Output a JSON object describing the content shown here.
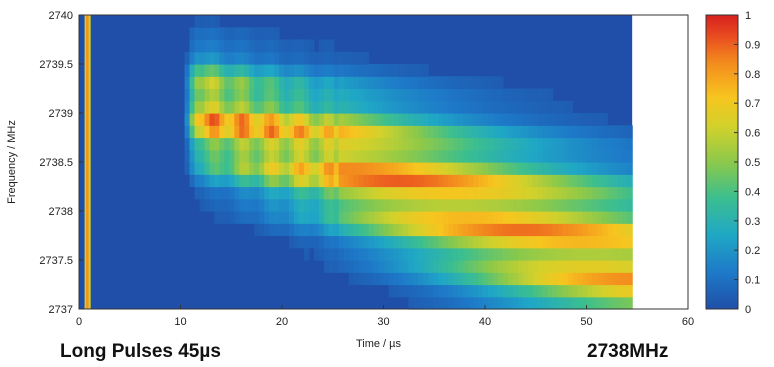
{
  "captions": {
    "left": "Long Pulses 45µs",
    "right": "2738MHz"
  },
  "chart_data": {
    "type": "heatmap",
    "title": "",
    "xlabel": "Time / µs",
    "ylabel": "Frequency / MHz",
    "xlim": [
      0,
      60
    ],
    "ylim": [
      2737,
      2740
    ],
    "x_ticks": [
      0,
      10,
      20,
      30,
      40,
      50,
      60
    ],
    "y_ticks": [
      2737,
      2737.5,
      2738,
      2738.5,
      2739,
      2739.5,
      2740
    ],
    "colorbar": {
      "ticks": [
        0,
        0.1,
        0.2,
        0.3,
        0.4,
        0.5,
        0.6,
        0.7,
        0.8,
        0.9,
        1
      ],
      "range": [
        0,
        1
      ],
      "colormap": "jet"
    },
    "time_range_with_signal": [
      10.4,
      54.5
    ],
    "data_time_extent": [
      0,
      54.5
    ],
    "frequency_rows": 24,
    "time_columns": 90,
    "colors": {
      "background_fill": "#1f4fa8",
      "axis": "#333333"
    }
  }
}
